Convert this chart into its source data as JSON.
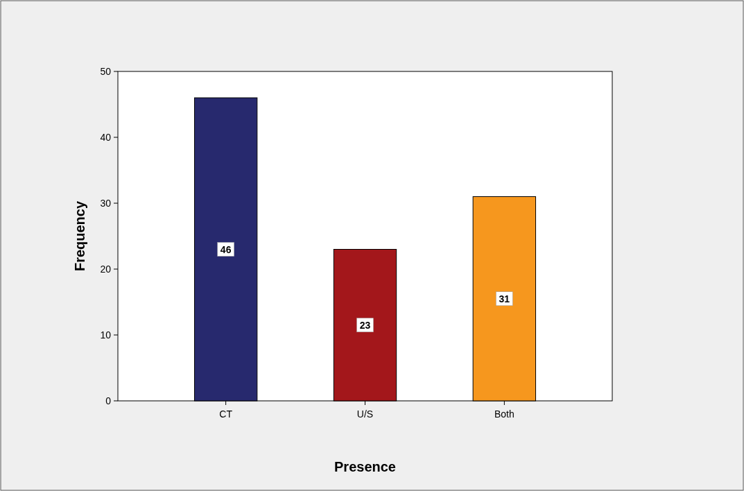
{
  "chart_data": {
    "type": "bar",
    "xlabel": "Presence",
    "ylabel": "Frequency",
    "categories": [
      "CT",
      "U/S",
      "Both"
    ],
    "values": [
      46,
      23,
      31
    ],
    "colors": [
      "#27296e",
      "#a3171b",
      "#f6971e"
    ],
    "ylim": [
      0,
      50
    ],
    "yticks": [
      0,
      10,
      20,
      30,
      40,
      50
    ],
    "data_labels": true
  }
}
